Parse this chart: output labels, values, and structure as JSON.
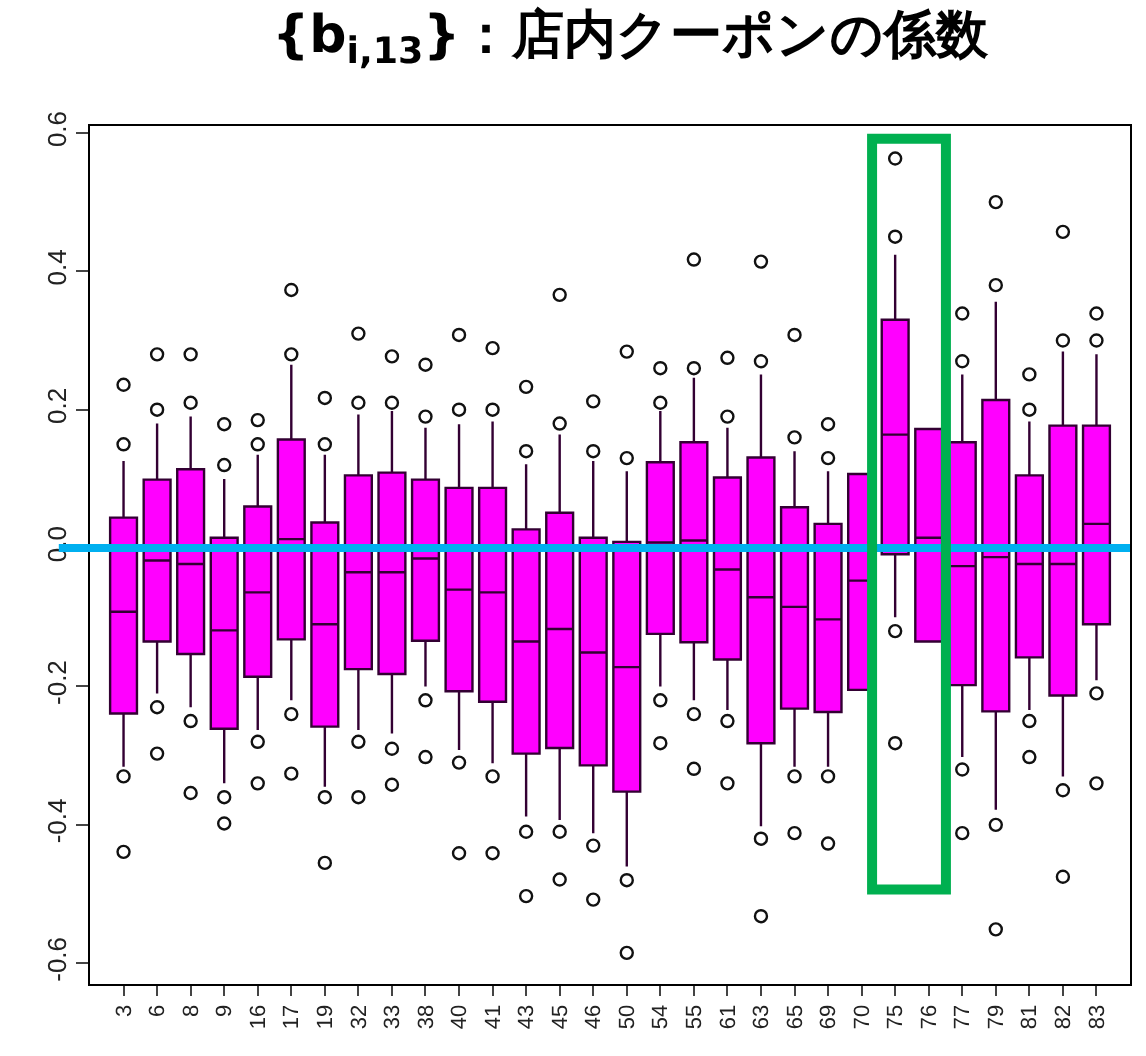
{
  "chart_data": {
    "type": "box",
    "title": "{b$_{i,13}$}：店内クーポンの係数",
    "categories": [
      "3",
      "6",
      "8",
      "9",
      "16",
      "17",
      "19",
      "32",
      "33",
      "38",
      "40",
      "41",
      "43",
      "45",
      "46",
      "50",
      "54",
      "55",
      "61",
      "63",
      "65",
      "69",
      "70",
      "75",
      "76",
      "77",
      "79",
      "81",
      "82",
      "83"
    ],
    "color": "#ff00ff",
    "boxes": [
      {
        "low": -0.316,
        "q1": -0.239,
        "median": -0.092,
        "q3": 0.044,
        "high": 0.126,
        "outliers": [
          0.236,
          0.15,
          -0.33,
          -0.439
        ]
      },
      {
        "low": -0.21,
        "q1": -0.135,
        "median": -0.018,
        "q3": 0.099,
        "high": 0.18,
        "outliers": [
          0.28,
          0.2,
          -0.23,
          -0.297
        ]
      },
      {
        "low": -0.23,
        "q1": -0.153,
        "median": -0.023,
        "q3": 0.114,
        "high": 0.19,
        "outliers": [
          0.28,
          0.21,
          -0.25,
          -0.354
        ]
      },
      {
        "low": -0.34,
        "q1": -0.261,
        "median": -0.119,
        "q3": 0.015,
        "high": 0.1,
        "outliers": [
          0.179,
          0.12,
          -0.36,
          -0.398
        ]
      },
      {
        "low": -0.263,
        "q1": -0.186,
        "median": -0.064,
        "q3": 0.06,
        "high": 0.135,
        "outliers": [
          0.185,
          0.15,
          -0.28,
          -0.34
        ]
      },
      {
        "low": -0.22,
        "q1": -0.132,
        "median": 0.013,
        "q3": 0.157,
        "high": 0.265,
        "outliers": [
          0.373,
          0.28,
          -0.24,
          -0.326
        ]
      },
      {
        "low": -0.345,
        "q1": -0.258,
        "median": -0.11,
        "q3": 0.037,
        "high": 0.135,
        "outliers": [
          0.217,
          0.15,
          -0.36,
          -0.455
        ]
      },
      {
        "low": -0.263,
        "q1": -0.175,
        "median": -0.035,
        "q3": 0.105,
        "high": 0.193,
        "outliers": [
          0.31,
          0.21,
          -0.28,
          -0.36
        ]
      },
      {
        "low": -0.268,
        "q1": -0.182,
        "median": -0.035,
        "q3": 0.109,
        "high": 0.198,
        "outliers": [
          0.277,
          0.21,
          -0.29,
          -0.342
        ]
      },
      {
        "low": -0.2,
        "q1": -0.134,
        "median": -0.015,
        "q3": 0.099,
        "high": 0.174,
        "outliers": [
          0.265,
          0.19,
          -0.22,
          -0.302
        ]
      },
      {
        "low": -0.292,
        "q1": -0.207,
        "median": -0.06,
        "q3": 0.087,
        "high": 0.179,
        "outliers": [
          0.308,
          0.2,
          -0.31,
          -0.441
        ]
      },
      {
        "low": -0.311,
        "q1": -0.222,
        "median": -0.064,
        "q3": 0.087,
        "high": 0.183,
        "outliers": [
          0.289,
          0.2,
          -0.33,
          -0.441
        ]
      },
      {
        "low": -0.388,
        "q1": -0.297,
        "median": -0.135,
        "q3": 0.027,
        "high": 0.121,
        "outliers": [
          0.233,
          0.14,
          -0.41,
          -0.503
        ]
      },
      {
        "low": -0.393,
        "q1": -0.289,
        "median": -0.117,
        "q3": 0.051,
        "high": 0.164,
        "outliers": [
          0.366,
          0.18,
          -0.41,
          -0.479
        ]
      },
      {
        "low": -0.412,
        "q1": -0.314,
        "median": -0.151,
        "q3": 0.015,
        "high": 0.126,
        "outliers": [
          0.212,
          0.14,
          -0.43,
          -0.508
        ]
      },
      {
        "low": -0.46,
        "q1": -0.352,
        "median": -0.172,
        "q3": 0.009,
        "high": 0.111,
        "outliers": [
          0.284,
          0.13,
          -0.48,
          -0.585
        ]
      },
      {
        "low": -0.2,
        "q1": -0.124,
        "median": 0.008,
        "q3": 0.124,
        "high": 0.198,
        "outliers": [
          0.26,
          0.21,
          -0.22,
          -0.282
        ]
      },
      {
        "low": -0.22,
        "q1": -0.136,
        "median": 0.011,
        "q3": 0.153,
        "high": 0.246,
        "outliers": [
          0.417,
          0.26,
          -0.24,
          -0.319
        ]
      },
      {
        "low": -0.234,
        "q1": -0.161,
        "median": -0.031,
        "q3": 0.102,
        "high": 0.174,
        "outliers": [
          0.275,
          0.19,
          -0.25,
          -0.34
        ]
      },
      {
        "low": -0.402,
        "q1": -0.282,
        "median": -0.071,
        "q3": 0.131,
        "high": 0.251,
        "outliers": [
          0.414,
          0.27,
          -0.42,
          -0.532
        ]
      },
      {
        "low": -0.316,
        "q1": -0.232,
        "median": -0.085,
        "q3": 0.059,
        "high": 0.14,
        "outliers": [
          0.308,
          0.16,
          -0.33,
          -0.412
        ]
      },
      {
        "low": -0.316,
        "q1": -0.237,
        "median": -0.103,
        "q3": 0.035,
        "high": 0.111,
        "outliers": [
          0.179,
          0.13,
          -0.33,
          -0.427
        ]
      },
      {
        "low": null,
        "q1": -0.205,
        "median": -0.047,
        "q3": 0.107,
        "high": null
      },
      {
        "low": -0.1,
        "q1": -0.009,
        "median": 0.164,
        "q3": 0.33,
        "high": 0.424,
        "outliers": [
          0.563,
          0.45,
          -0.12,
          -0.282
        ]
      },
      {
        "low": null,
        "q1": -0.135,
        "median": 0.015,
        "q3": 0.172,
        "high": null
      },
      {
        "low": -0.302,
        "q1": -0.198,
        "median": -0.026,
        "q3": 0.153,
        "high": 0.251,
        "outliers": [
          0.339,
          0.27,
          -0.32,
          -0.412
        ]
      },
      {
        "low": -0.378,
        "q1": -0.236,
        "median": -0.013,
        "q3": 0.214,
        "high": 0.356,
        "outliers": [
          0.5,
          0.38,
          -0.4,
          -0.551
        ]
      },
      {
        "low": -0.234,
        "q1": -0.158,
        "median": -0.023,
        "q3": 0.105,
        "high": 0.183,
        "outliers": [
          0.251,
          0.2,
          -0.25,
          -0.302
        ]
      },
      {
        "low": -0.33,
        "q1": -0.213,
        "median": -0.023,
        "q3": 0.177,
        "high": 0.284,
        "outliers": [
          0.457,
          0.3,
          -0.35,
          -0.475
        ]
      },
      {
        "low": -0.191,
        "q1": -0.11,
        "median": 0.035,
        "q3": 0.177,
        "high": 0.28,
        "outliers": [
          0.339,
          0.3,
          -0.21,
          -0.34
        ]
      }
    ],
    "ylim": [
      -0.63,
      0.61
    ],
    "yticks": [
      {
        "value": -0.6,
        "label": "-0.6"
      },
      {
        "value": -0.4,
        "label": "-0.4"
      },
      {
        "value": -0.2,
        "label": "-0.2"
      },
      {
        "value": 0,
        "label": "0.0"
      },
      {
        "value": 0.2,
        "label": "0.2"
      },
      {
        "value": 0.4,
        "label": "0.4"
      },
      {
        "value": 0.6,
        "label": "0.6"
      }
    ],
    "ref_lines": [
      {
        "axis": "y",
        "value": 0,
        "color": "#00b0f0"
      }
    ]
  }
}
